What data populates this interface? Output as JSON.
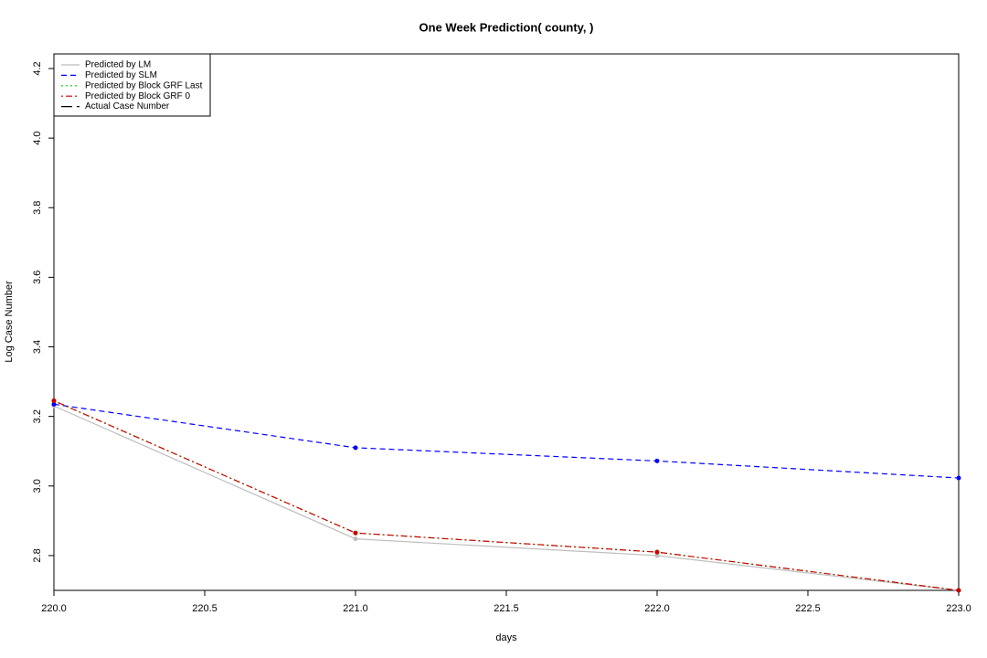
{
  "chart_data": {
    "type": "line",
    "title": "One Week Prediction( county, )",
    "x_label": "days",
    "y_label": "Log Case Number",
    "x": [
      220,
      221,
      222,
      223
    ],
    "series": [
      {
        "name": "Predicted by LM",
        "color": "#bebebe",
        "dash": "solid",
        "values": [
          3.23,
          2.848,
          2.8,
          2.7
        ]
      },
      {
        "name": "Predicted by SLM",
        "color": "#0000ff",
        "dash": "dashed",
        "values": [
          3.235,
          3.11,
          3.072,
          3.023
        ]
      },
      {
        "name": "Predicted by Block GRF Last",
        "color": "#00cd00",
        "dash": "dotted",
        "values": [
          3.245,
          2.865,
          2.81,
          2.7
        ]
      },
      {
        "name": "Predicted by Block GRF 0",
        "color": "#cd0000",
        "dash": "dotdash",
        "values": [
          3.245,
          2.865,
          2.81,
          2.7
        ]
      },
      {
        "name": "Actual Case Number",
        "color": "#000000",
        "dash": "longdash",
        "values": [
          null,
          null,
          null,
          null
        ]
      }
    ],
    "xlim": [
      220,
      223
    ],
    "xticks": [
      {
        "value": 220,
        "label": "220.0"
      },
      {
        "value": 220.5,
        "label": "220.5"
      },
      {
        "value": 221,
        "label": "221.0"
      },
      {
        "value": 221.5,
        "label": "221.5"
      },
      {
        "value": 222,
        "label": "222.0"
      },
      {
        "value": 222.5,
        "label": "222.5"
      },
      {
        "value": 223,
        "label": "223.0"
      }
    ],
    "ylim": [
      2.7,
      4.242
    ],
    "yticks": [
      2.8,
      {
        "value": 3,
        "label": "3.0"
      },
      3.2,
      3.4,
      3.6,
      3.8,
      {
        "value": 4,
        "label": "4.0"
      },
      4.2
    ],
    "legend": "top-left"
  }
}
